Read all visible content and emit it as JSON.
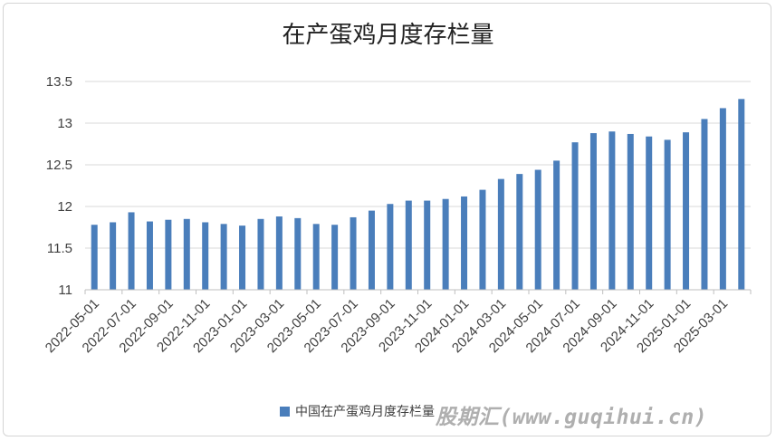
{
  "chart_data": {
    "type": "bar",
    "title": "在产蛋鸡月度存栏量",
    "xlabel": "",
    "ylabel": "",
    "ylim": [
      11,
      13.5
    ],
    "yticks": [
      "11",
      "11.5",
      "12",
      "12.5",
      "13",
      "13.5"
    ],
    "grid": true,
    "legend_position": "bottom",
    "bar_color": "#4a7ebb",
    "categories": [
      "2022-05-01",
      "2022-06-01",
      "2022-07-01",
      "2022-08-01",
      "2022-09-01",
      "2022-10-01",
      "2022-11-01",
      "2022-12-01",
      "2023-01-01",
      "2023-02-01",
      "2023-03-01",
      "2023-04-01",
      "2023-05-01",
      "2023-06-01",
      "2023-07-01",
      "2023-08-01",
      "2023-09-01",
      "2023-10-01",
      "2023-11-01",
      "2023-12-01",
      "2024-01-01",
      "2024-02-01",
      "2024-03-01",
      "2024-04-01",
      "2024-05-01",
      "2024-06-01",
      "2024-07-01",
      "2024-08-01",
      "2024-09-01",
      "2024-10-01",
      "2024-11-01",
      "2024-12-01",
      "2025-01-01",
      "2025-02-01",
      "2025-03-01",
      "2025-04-01"
    ],
    "xtick_labels": [
      "2022-05-01",
      "2022-07-01",
      "2022-09-01",
      "2022-11-01",
      "2023-01-01",
      "2023-03-01",
      "2023-05-01",
      "2023-07-01",
      "2023-09-01",
      "2023-11-01",
      "2024-01-01",
      "2024-03-01",
      "2024-05-01",
      "2024-07-01",
      "2024-09-01",
      "2024-11-01",
      "2025-01-01",
      "2025-03-01"
    ],
    "series": [
      {
        "name": "中国在产蛋鸡月度存栏量",
        "values": [
          11.78,
          11.81,
          11.93,
          11.82,
          11.84,
          11.85,
          11.81,
          11.79,
          11.77,
          11.85,
          11.88,
          11.86,
          11.79,
          11.78,
          11.87,
          11.95,
          12.03,
          12.07,
          12.07,
          12.09,
          12.12,
          12.2,
          12.33,
          12.39,
          12.44,
          12.55,
          12.77,
          12.88,
          12.9,
          12.87,
          12.84,
          12.8,
          12.89,
          13.05,
          13.18,
          13.29
        ]
      }
    ]
  },
  "watermark": "股期汇(www.guqihui.cn)"
}
